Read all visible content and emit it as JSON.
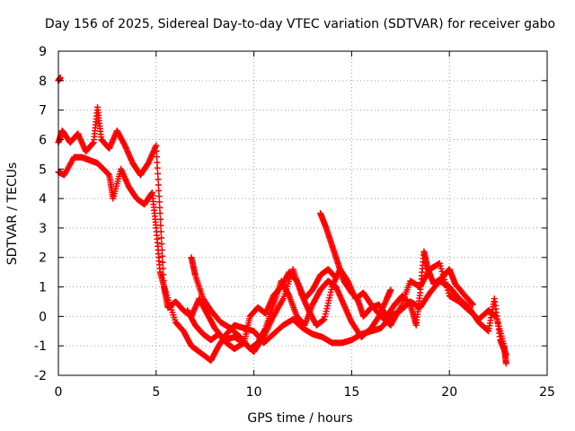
{
  "chart_data": {
    "type": "scatter",
    "title": "Day 156 of 2025, Sidereal Day-to-day VTEC variation (SDTVAR) for receiver gabo",
    "xlabel": "GPS time / hours",
    "ylabel": "SDTVAR / TECUs",
    "xlim": [
      0,
      25
    ],
    "ylim": [
      -2,
      9
    ],
    "xticks": [
      0,
      5,
      10,
      15,
      20,
      25
    ],
    "yticks": [
      -2,
      -1,
      0,
      1,
      2,
      3,
      4,
      5,
      6,
      7,
      8,
      9
    ],
    "xtick_labels": [
      "0",
      "5",
      "10",
      "15",
      "20",
      "25"
    ],
    "ytick_labels": [
      "-2",
      "-1",
      "0",
      "1",
      "2",
      "3",
      "4",
      "5",
      "6",
      "7",
      "8",
      "9"
    ],
    "grid": true,
    "marker": "+",
    "series": [
      {
        "name": "SDTVAR",
        "color": "#ff0000",
        "traces": [
          [
            [
              0.0,
              5.9
            ],
            [
              0.2,
              6.3
            ],
            [
              0.6,
              5.9
            ],
            [
              1.0,
              6.2
            ],
            [
              1.4,
              5.6
            ],
            [
              1.8,
              5.9
            ],
            [
              2.0,
              7.1
            ],
            [
              2.2,
              6.0
            ],
            [
              2.6,
              5.7
            ],
            [
              3.0,
              6.3
            ],
            [
              3.4,
              5.8
            ],
            [
              3.8,
              5.2
            ],
            [
              4.2,
              4.8
            ],
            [
              4.6,
              5.2
            ],
            [
              5.0,
              5.8
            ],
            [
              5.2,
              3.5
            ],
            [
              5.4,
              1.0
            ],
            [
              5.6,
              0.3
            ],
            [
              6.0,
              0.5
            ],
            [
              6.4,
              0.2
            ],
            [
              6.8,
              0.0
            ],
            [
              7.2,
              0.6
            ],
            [
              7.6,
              0.1
            ],
            [
              8.0,
              -0.4
            ],
            [
              8.5,
              -0.8
            ],
            [
              9.0,
              -0.7
            ],
            [
              9.5,
              -0.9
            ],
            [
              10.0,
              -1.2
            ],
            [
              10.5,
              -0.7
            ],
            [
              11.0,
              0.0
            ],
            [
              11.5,
              0.6
            ],
            [
              12.0,
              1.6
            ],
            [
              12.4,
              0.8
            ],
            [
              12.8,
              0.2
            ],
            [
              13.2,
              -0.3
            ],
            [
              13.6,
              -0.1
            ],
            [
              14.0,
              1.0
            ],
            [
              14.4,
              1.6
            ],
            [
              14.8,
              1.2
            ],
            [
              15.2,
              0.6
            ],
            [
              15.6,
              0.8
            ],
            [
              16.0,
              0.4
            ],
            [
              16.5,
              0.0
            ],
            [
              17.0,
              -0.3
            ],
            [
              17.5,
              0.3
            ],
            [
              18.0,
              1.2
            ],
            [
              18.5,
              1.0
            ],
            [
              19.0,
              1.6
            ],
            [
              19.5,
              1.8
            ],
            [
              20.0,
              0.7
            ],
            [
              20.5,
              0.5
            ],
            [
              21.0,
              0.2
            ],
            [
              21.5,
              -0.1
            ],
            [
              22.0,
              0.2
            ],
            [
              22.4,
              0.0
            ],
            [
              22.8,
              -1.0
            ],
            [
              22.9,
              -1.6
            ]
          ],
          [
            [
              0.0,
              8.0
            ],
            [
              0.1,
              8.1
            ]
          ],
          [
            [
              0.0,
              4.9
            ],
            [
              0.3,
              4.8
            ],
            [
              0.8,
              5.4
            ],
            [
              1.2,
              5.4
            ],
            [
              1.6,
              5.3
            ],
            [
              2.0,
              5.2
            ],
            [
              2.6,
              4.8
            ],
            [
              2.8,
              4.0
            ],
            [
              3.2,
              5.0
            ],
            [
              3.6,
              4.4
            ],
            [
              4.0,
              4.0
            ],
            [
              4.4,
              3.8
            ],
            [
              4.8,
              4.2
            ],
            [
              5.0,
              3.0
            ],
            [
              5.2,
              1.5
            ],
            [
              5.5,
              0.8
            ],
            [
              6.0,
              -0.2
            ],
            [
              6.4,
              -0.5
            ],
            [
              6.8,
              -1.0
            ],
            [
              7.2,
              -1.2
            ],
            [
              7.8,
              -1.5
            ],
            [
              8.2,
              -1.0
            ],
            [
              8.6,
              -0.6
            ],
            [
              9.0,
              -0.3
            ],
            [
              9.5,
              -0.4
            ],
            [
              10.0,
              -0.5
            ],
            [
              10.5,
              -0.9
            ],
            [
              11.0,
              -0.6
            ],
            [
              11.5,
              -0.3
            ],
            [
              12.0,
              -0.1
            ],
            [
              12.5,
              -0.4
            ],
            [
              13.0,
              -0.6
            ],
            [
              13.5,
              -0.7
            ],
            [
              14.0,
              -0.9
            ],
            [
              14.5,
              -0.9
            ],
            [
              15.0,
              -0.8
            ],
            [
              15.5,
              -0.6
            ],
            [
              16.0,
              -0.5
            ],
            [
              16.5,
              -0.4
            ],
            [
              17.0,
              0.0
            ],
            [
              17.5,
              0.2
            ],
            [
              18.0,
              0.5
            ],
            [
              18.5,
              0.3
            ],
            [
              19.0,
              0.8
            ],
            [
              19.5,
              1.2
            ],
            [
              20.0,
              1.0
            ],
            [
              20.5,
              0.6
            ],
            [
              21.0,
              0.3
            ],
            [
              21.5,
              -0.2
            ],
            [
              22.0,
              -0.5
            ],
            [
              22.3,
              0.6
            ],
            [
              22.6,
              -0.8
            ],
            [
              22.9,
              -1.3
            ]
          ],
          [
            [
              6.8,
              2.0
            ],
            [
              7.0,
              1.4
            ],
            [
              7.4,
              0.6
            ],
            [
              7.8,
              0.2
            ],
            [
              8.3,
              -0.2
            ],
            [
              8.8,
              -0.4
            ],
            [
              9.3,
              -0.7
            ],
            [
              9.8,
              -1.1
            ],
            [
              10.2,
              -0.9
            ],
            [
              10.6,
              -0.4
            ],
            [
              11.0,
              0.4
            ],
            [
              11.4,
              1.2
            ],
            [
              11.8,
              0.7
            ],
            [
              12.2,
              0.0
            ],
            [
              12.6,
              -0.3
            ],
            [
              13.0,
              0.4
            ],
            [
              13.4,
              0.9
            ],
            [
              13.8,
              1.2
            ],
            [
              14.2,
              1.0
            ],
            [
              14.6,
              0.4
            ],
            [
              15.0,
              -0.2
            ],
            [
              15.5,
              -0.7
            ],
            [
              16.0,
              -0.4
            ],
            [
              16.4,
              0.0
            ],
            [
              16.8,
              0.6
            ],
            [
              17.0,
              0.9
            ]
          ],
          [
            [
              13.4,
              3.5
            ],
            [
              13.7,
              3.0
            ],
            [
              14.0,
              2.4
            ],
            [
              14.3,
              1.8
            ],
            [
              14.6,
              1.2
            ],
            [
              15.0,
              0.8
            ],
            [
              15.3,
              0.6
            ],
            [
              15.6,
              0.0
            ],
            [
              16.0,
              0.3
            ],
            [
              16.4,
              0.4
            ],
            [
              16.8,
              0.0
            ],
            [
              17.2,
              0.4
            ],
            [
              17.6,
              0.7
            ],
            [
              18.0,
              0.4
            ],
            [
              18.3,
              -0.3
            ],
            [
              18.5,
              0.8
            ],
            [
              18.7,
              2.2
            ],
            [
              18.9,
              1.6
            ],
            [
              19.2,
              1.1
            ],
            [
              19.6,
              1.3
            ],
            [
              20.0,
              1.6
            ],
            [
              20.3,
              1.1
            ],
            [
              20.8,
              0.7
            ],
            [
              21.2,
              0.4
            ]
          ],
          [
            [
              6.6,
              0.2
            ],
            [
              7.0,
              -0.3
            ],
            [
              7.4,
              -0.6
            ],
            [
              7.8,
              -0.8
            ],
            [
              8.2,
              -0.6
            ],
            [
              8.6,
              -0.9
            ],
            [
              9.0,
              -1.1
            ],
            [
              9.5,
              -0.9
            ],
            [
              9.8,
              0.0
            ],
            [
              10.2,
              0.3
            ],
            [
              10.6,
              0.1
            ],
            [
              11.0,
              0.7
            ],
            [
              11.4,
              1.0
            ],
            [
              11.8,
              1.5
            ],
            [
              12.2,
              1.2
            ],
            [
              12.6,
              0.6
            ],
            [
              13.0,
              0.9
            ],
            [
              13.4,
              1.4
            ],
            [
              13.8,
              1.6
            ],
            [
              14.2,
              1.3
            ]
          ]
        ]
      }
    ]
  }
}
